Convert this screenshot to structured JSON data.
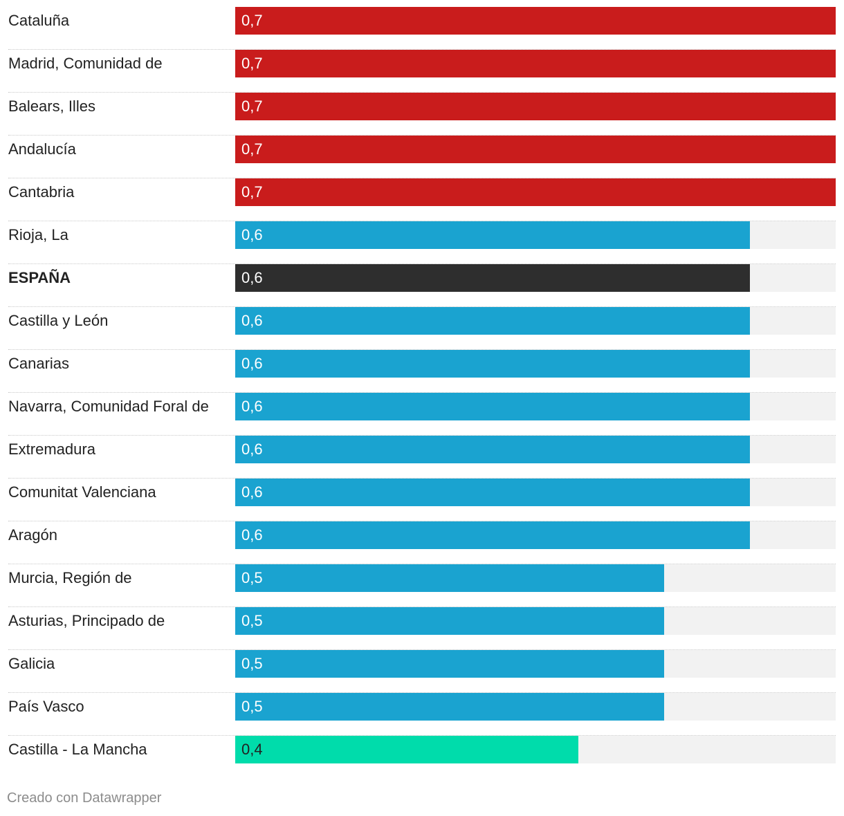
{
  "chart_data": {
    "type": "bar",
    "orientation": "horizontal",
    "title": "",
    "xlabel": "",
    "ylabel": "",
    "xlim": [
      0,
      0.7
    ],
    "grid": false,
    "legend": "none",
    "categories": [
      "Cataluña",
      "Madrid, Comunidad de",
      "Balears, Illes",
      "Andalucía",
      "Cantabria",
      "Rioja, La",
      "ESPAÑA",
      "Castilla y León",
      "Canarias",
      "Navarra, Comunidad Foral de",
      "Extremadura",
      "Comunitat Valenciana",
      "Aragón",
      "Murcia, Región de",
      "Asturias, Principado de",
      "Galicia",
      "País Vasco",
      "Castilla - La Mancha"
    ],
    "values": [
      0.7,
      0.7,
      0.7,
      0.7,
      0.7,
      0.6,
      0.6,
      0.6,
      0.6,
      0.6,
      0.6,
      0.6,
      0.6,
      0.5,
      0.5,
      0.5,
      0.5,
      0.4
    ],
    "value_labels": [
      "0,7",
      "0,7",
      "0,7",
      "0,7",
      "0,7",
      "0,6",
      "0,6",
      "0,6",
      "0,6",
      "0,6",
      "0,6",
      "0,6",
      "0,6",
      "0,5",
      "0,5",
      "0,5",
      "0,5",
      "0,4"
    ],
    "bold_categories": [
      "ESPAÑA"
    ],
    "colors": {
      "0.7": "#c91c1c",
      "0.6": "#1aa3d0",
      "0.5": "#1aa3d0",
      "0.4": "#00dcab",
      "highlight": "#2e2e2e",
      "track": "#f2f2f2"
    },
    "dark_text_values": [
      0.4
    ]
  },
  "footer": {
    "credit": "Creado con Datawrapper"
  }
}
